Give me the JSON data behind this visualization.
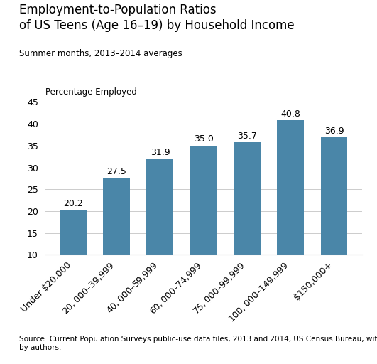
{
  "title_line1": "Employment-to-Population Ratios",
  "title_line2": "of US Teens (Age 16–19) by Household Income",
  "subtitle": "Summer months, 2013–2014 averages",
  "ylabel": "Percentage Employed",
  "categories": [
    "Under $20,000",
    "$20,000–$39,999",
    "$40,000–$59,999",
    "$60,000–$74,999",
    "$75,000–$99,999",
    "$100,000–$149,999",
    "$150,000+"
  ],
  "values": [
    20.2,
    27.5,
    31.9,
    35.0,
    35.7,
    40.8,
    36.9
  ],
  "bar_color": "#4a86a8",
  "ylim_min": 10,
  "ylim_max": 45,
  "yticks": [
    10,
    15,
    20,
    25,
    30,
    35,
    40,
    45
  ],
  "source_text": "Source: Current Population Surveys public-use data files, 2013 and 2014, US Census Bureau, with tabulations\nby authors.",
  "background_color": "#ffffff",
  "tick_fontsize": 9,
  "value_fontsize": 9,
  "title_fontsize": 12,
  "subtitle_fontsize": 8.5,
  "ylabel_fontsize": 8.5,
  "source_fontsize": 7.5
}
